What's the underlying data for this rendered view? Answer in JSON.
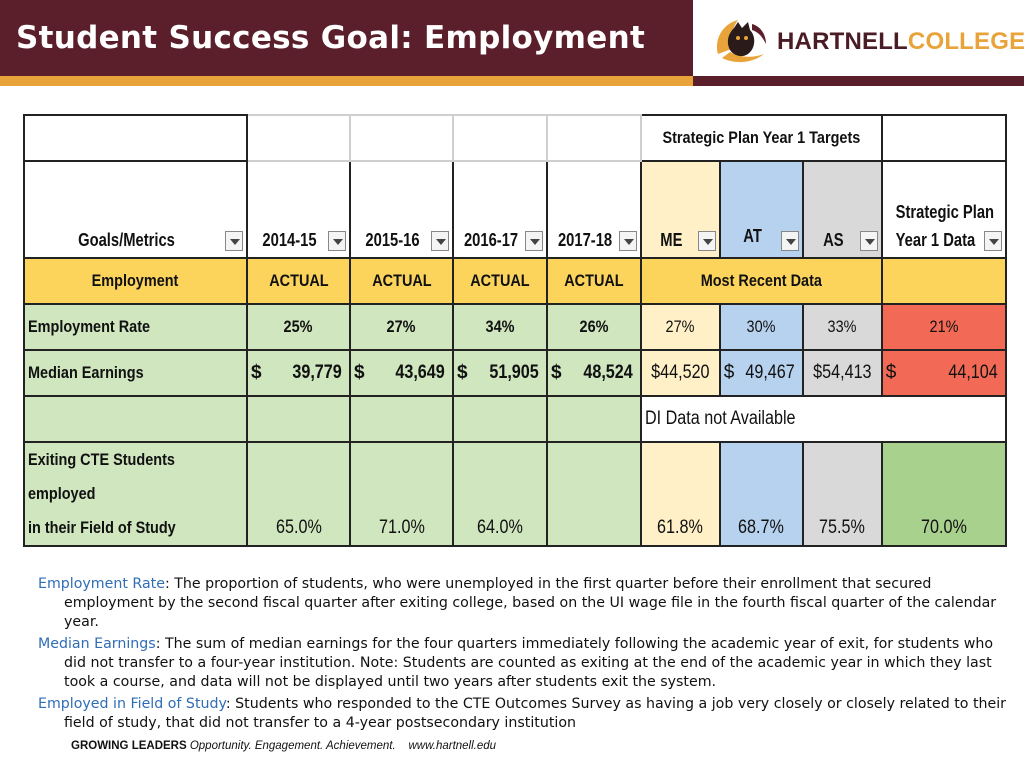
{
  "header": {
    "title": "Student Success Goal: Employment",
    "logo_text_1": "HARTNELL",
    "logo_text_2": "COLLEGE"
  },
  "table": {
    "strategic_targets_label": "Strategic Plan Year 1 Targets",
    "columns": {
      "goals": "Goals/Metrics",
      "y1": "2014-15",
      "y2": "2015-16",
      "y3": "2016-17",
      "y4": "2017-18",
      "me": "ME",
      "at": "AT",
      "as": "AS",
      "data_line1": "Strategic Plan",
      "data_line2": "Year 1 Data"
    },
    "employment_row": {
      "label": "Employment",
      "y1": "ACTUAL",
      "y2": "ACTUAL",
      "y3": "ACTUAL",
      "y4": "ACTUAL",
      "recent": "Most Recent Data"
    },
    "rate_row": {
      "label": "Employment Rate",
      "y1": "25%",
      "y2": "27%",
      "y3": "34%",
      "y4": "26%",
      "me": "27%",
      "at": "30%",
      "as": "33%",
      "data": "21%"
    },
    "earnings_row": {
      "label": "Median Earnings",
      "currency": "$",
      "y1": "39,779",
      "y2": "43,649",
      "y3": "51,905",
      "y4": "48,524",
      "me": "$44,520",
      "at_cur": "$",
      "at": "49,467",
      "as": "$54,413",
      "data": "44,104"
    },
    "di_row": {
      "text": "DI Data not Available"
    },
    "cte_row": {
      "label_line1": "Exiting CTE Students employed",
      "label_line2": "in their Field of Study",
      "y1": "65.0%",
      "y2": "71.0%",
      "y3": "64.0%",
      "me": "61.8%",
      "at": "68.7%",
      "as": "75.5%",
      "data": "70.0%"
    }
  },
  "notes": {
    "rate_term": "Employment Rate",
    "rate_text": ": The proportion of students, who were unemployed in the first quarter before their enrollment that secured employment by the second fiscal quarter after exiting college, based on the UI wage file in the fourth fiscal quarter of the calendar year.",
    "earnings_term": "Median Earnings",
    "earnings_text": ": The sum of median earnings for the four quarters immediately following the academic year of exit, for students who did not transfer to a four-year institution. Note: Students are counted as exiting at the end of the academic year in which they last took a course, and data will not be displayed until two years after students exit the system.",
    "field_term": "Employed in Field of Study",
    "field_text": ": Students who responded to the CTE Outcomes Survey as having a job very closely or closely related to their field of study, that did not transfer to a 4-year postsecondary institution"
  },
  "footer": {
    "bold": "GROWING LEADERS",
    "italic": "Opportunity. Engagement. Achievement.",
    "url": "www.hartnell.edu"
  }
}
